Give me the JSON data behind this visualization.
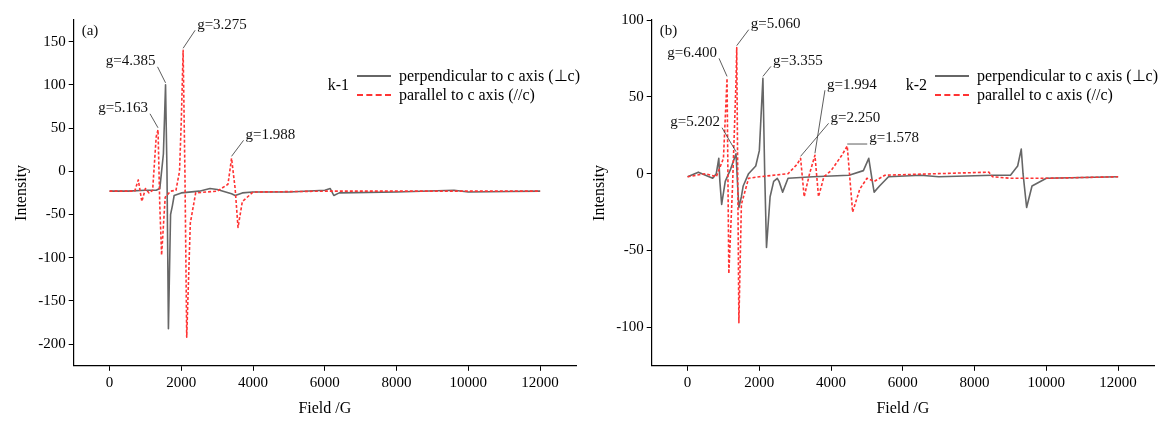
{
  "chart_data": [
    {
      "type": "line",
      "xlabel": "Field /G",
      "ylabel": "Intensity",
      "legend_title": "k-1",
      "legend": "top right",
      "grid": false,
      "marker": "none",
      "xlim": [
        -1000,
        13000
      ],
      "xticks": [
        0,
        2000,
        4000,
        6000,
        8000,
        10000,
        12000
      ],
      "ylim": [
        -225,
        175
      ],
      "yticks": [
        -200,
        -150,
        -100,
        -50,
        0,
        50,
        100,
        150
      ],
      "annotations": [
        "(a)",
        {
          "text": "g=5.163",
          "x": 1350,
          "y": 48
        },
        {
          "text": "g=4.385",
          "x": 1560,
          "y": 100
        },
        {
          "text": "g=3.275",
          "x": 2050,
          "y": 140
        },
        {
          "text": "g=1.988",
          "x": 3400,
          "y": 15
        }
      ],
      "series": [
        {
          "name": "perpendicular to c axis (⊥c)",
          "color": "#666666",
          "line_style": "solid",
          "x": [
            0,
            500,
            1000,
            1300,
            1400,
            1500,
            1560,
            1600,
            1640,
            1700,
            1750,
            1800,
            2000,
            2500,
            2800,
            3000,
            3400,
            3500,
            3700,
            4000,
            5000,
            6000,
            6150,
            6250,
            6400,
            8000,
            9600,
            10000,
            12000
          ],
          "values": [
            -23,
            -23,
            -22,
            -22,
            -20,
            20,
            100,
            0,
            -182,
            -50,
            -40,
            -28,
            -25,
            -23,
            -20,
            -21,
            -26,
            -28,
            -25,
            -24,
            -24,
            -22,
            -20,
            -28,
            -25,
            -24,
            -22,
            -24,
            -23
          ]
        },
        {
          "name": "parallel to c axis (//c)",
          "color": "#ff3333",
          "line_style": "dashed",
          "x": [
            0,
            700,
            800,
            900,
            1000,
            1100,
            1200,
            1300,
            1350,
            1400,
            1450,
            1550,
            1700,
            1850,
            1950,
            2000,
            2050,
            2100,
            2150,
            2250,
            2400,
            3000,
            3300,
            3400,
            3500,
            3580,
            3700,
            4000,
            6000,
            12000
          ],
          "values": [
            -23,
            -23,
            -10,
            -35,
            -20,
            -25,
            -22,
            40,
            48,
            -40,
            -97,
            -30,
            -23,
            -22,
            0,
            60,
            140,
            0,
            -192,
            -60,
            -25,
            -23,
            -15,
            15,
            -20,
            -65,
            -35,
            -24,
            -23,
            -23
          ]
        }
      ]
    },
    {
      "type": "line",
      "xlabel": "Field /G",
      "ylabel": "Intensity",
      "legend_title": "k-2",
      "legend": "top right",
      "grid": false,
      "marker": "none",
      "xlim": [
        -1000,
        13000
      ],
      "xticks": [
        0,
        2000,
        4000,
        6000,
        8000,
        10000,
        12000
      ],
      "ylim": [
        -125,
        100
      ],
      "yticks": [
        -100,
        -50,
        0,
        50,
        100
      ],
      "annotations": [
        "(b)",
        {
          "text": "g=6.400",
          "x": 1100,
          "y": 62
        },
        {
          "text": "g=5.060",
          "x": 1370,
          "y": 82
        },
        {
          "text": "g=5.202",
          "x": 1350,
          "y": 13
        },
        {
          "text": "g=3.355",
          "x": 2100,
          "y": 62
        },
        {
          "text": "g=1.994",
          "x": 3550,
          "y": 12
        },
        {
          "text": "g=2.250",
          "x": 3150,
          "y": 10
        },
        {
          "text": "g=1.578",
          "x": 4450,
          "y": 18
        }
      ],
      "series": [
        {
          "name": "perpendicular to c axis (⊥c)",
          "color": "#666666",
          "line_style": "solid",
          "x": [
            0,
            300,
            500,
            700,
            800,
            870,
            900,
            950,
            1050,
            1200,
            1350,
            1400,
            1430,
            1500,
            1550,
            1700,
            1900,
            2000,
            2100,
            2150,
            2200,
            2300,
            2400,
            2500,
            2550,
            2650,
            2800,
            3500,
            4500,
            4900,
            5050,
            5150,
            5200,
            5350,
            5600,
            6500,
            7000,
            8500,
            9000,
            9200,
            9300,
            9350,
            9450,
            9600,
            10000,
            12000
          ],
          "values": [
            -2,
            1,
            -1,
            -3,
            0,
            10,
            -5,
            -20,
            -5,
            3,
            13,
            -10,
            -22,
            -15,
            -8,
            0,
            5,
            15,
            62,
            0,
            -48,
            -15,
            -5,
            -3,
            -5,
            -12,
            -3,
            -2,
            -1,
            2,
            10,
            -5,
            -12,
            -8,
            -2,
            -1,
            -2,
            -1,
            -1,
            5,
            16,
            0,
            -22,
            -8,
            -3,
            -2
          ]
        },
        {
          "name": "parallel to c axis (//c)",
          "color": "#ff3333",
          "line_style": "dashed",
          "x": [
            0,
            500,
            800,
            1000,
            1100,
            1150,
            1250,
            1350,
            1370,
            1430,
            1500,
            1700,
            2000,
            2800,
            3050,
            3150,
            3250,
            3400,
            3550,
            3650,
            3800,
            4000,
            4300,
            4450,
            4600,
            4800,
            5000,
            5200,
            5500,
            8400,
            8500,
            9000,
            10000,
            12000
          ],
          "values": [
            -2,
            0,
            -2,
            10,
            62,
            -65,
            -10,
            60,
            82,
            -97,
            -20,
            -3,
            -2,
            0,
            6,
            10,
            -15,
            0,
            12,
            -15,
            -2,
            2,
            12,
            18,
            -25,
            -10,
            -3,
            -5,
            -1,
            1,
            -2,
            -3,
            -3,
            -2
          ]
        }
      ]
    }
  ]
}
